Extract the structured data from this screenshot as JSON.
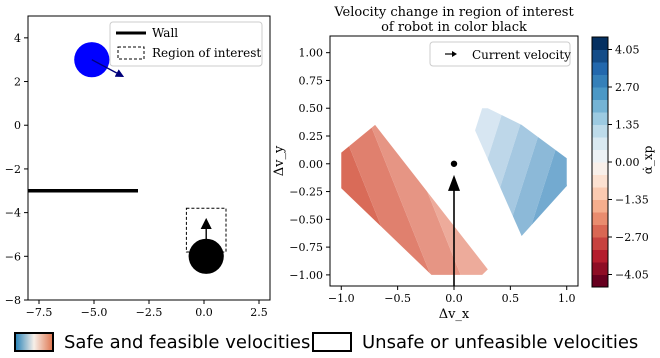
{
  "chart_data": [
    {
      "type": "scatter",
      "title": "",
      "xlabel": "",
      "ylabel": "",
      "xlim": [
        -8,
        3
      ],
      "ylim": [
        -8,
        5
      ],
      "xticks": [
        "−7.5",
        "−5.0",
        "−2.5",
        "0.0",
        "2.5"
      ],
      "yticks": [
        "4",
        "2",
        "0",
        "−2",
        "−4",
        "−6",
        "−8"
      ],
      "legend": {
        "placement": "top-right",
        "entries": [
          "Wall",
          "Region of interest"
        ]
      },
      "wall": {
        "x": [
          -8,
          -3
        ],
        "y": [
          -3,
          -3
        ]
      },
      "region_of_interest": {
        "x": [
          -0.8,
          1
        ],
        "y": [
          -3.8,
          -5.8
        ]
      },
      "robots": [
        {
          "color": "#0000ff",
          "center": [
            -5.1,
            3
          ],
          "radius": 0.8,
          "velocity_arrow_to": [
            -3.8,
            2.3
          ]
        },
        {
          "color": "#000000",
          "center": [
            0.1,
            -6
          ],
          "radius": 0.8,
          "velocity_arrow_to": [
            0.1,
            -4.5
          ]
        }
      ],
      "grid": false
    },
    {
      "type": "heatmap",
      "title_lines": [
        "Velocity change in region of interest",
        "of robot in color black"
      ],
      "xlabel": "Δv_x",
      "ylabel": "Δv_y",
      "xlim": [
        -1.1,
        1.1
      ],
      "ylim": [
        -1.1,
        1.15
      ],
      "xticks": [
        "−1.0",
        "−0.5",
        "0.0",
        "0.5",
        "1.0"
      ],
      "yticks": [
        "1.00",
        "0.75",
        "0.50",
        "0.25",
        "0.00",
        "−0.25",
        "−0.50",
        "−0.75",
        "−1.00"
      ],
      "legend": {
        "placement": "top-right",
        "entries": [
          "Current velocity"
        ]
      },
      "current_velocity": {
        "x": 0.0,
        "y": 0.0
      },
      "arrow": {
        "from": [
          0.0,
          -1.1
        ],
        "to": [
          0.0,
          -0.1
        ]
      },
      "left_region": {
        "polygon": [
          [
            -1.0,
            0.1
          ],
          [
            -0.7,
            0.35
          ],
          [
            0.3,
            -0.95
          ],
          [
            0.25,
            -1.0
          ],
          [
            -0.2,
            -1.0
          ],
          [
            -1.0,
            -0.22
          ]
        ],
        "value_range": [
          -2.5,
          0
        ]
      },
      "right_region": {
        "polygon": [
          [
            0.1,
            0.5
          ],
          [
            0.3,
            0.5
          ],
          [
            0.6,
            0.35
          ],
          [
            1.0,
            0.05
          ],
          [
            1.0,
            -0.2
          ],
          [
            0.6,
            -0.65
          ]
        ],
        "value_range": [
          0,
          2.5
        ]
      },
      "grid": false
    },
    {
      "type": "colorbar",
      "label": "α̇_xp",
      "range": [
        -4.5,
        4.5
      ],
      "ticks": [
        "4.05",
        "2.70",
        "1.35",
        "0.00",
        "−1.35",
        "−2.70",
        "−4.05"
      ],
      "colors_low_to_high": [
        "#67001f",
        "#b2182b",
        "#d6604d",
        "#f4a582",
        "#fddbc7",
        "#f7f7f7",
        "#d1e5f0",
        "#92c5de",
        "#4393c3",
        "#2166ac",
        "#053061"
      ]
    }
  ],
  "bottom_legend": {
    "safe_label": "Safe and feasible velocities",
    "unsafe_label": "Unsafe or unfeasible velocities"
  },
  "colors": {
    "left_low": "#d6604d",
    "left_high": "#fde0d2",
    "right_low": "#e3eef6",
    "right_high": "#4d93c3",
    "robot_blue": "#0000ff",
    "robot_black": "#000000"
  }
}
